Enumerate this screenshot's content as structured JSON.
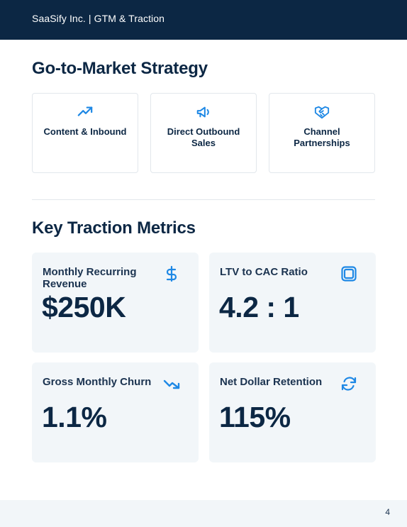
{
  "header": {
    "title": "SaaSify Inc. | GTM & Traction"
  },
  "gtm": {
    "title": "Go-to-Market Strategy",
    "cards": [
      {
        "label": "Content & Inbound",
        "icon": "trending-up-icon"
      },
      {
        "label": "Direct Outbound Sales",
        "icon": "megaphone-icon"
      },
      {
        "label": "Channel Partnerships",
        "icon": "handshake-icon"
      }
    ]
  },
  "traction": {
    "title": "Key Traction Metrics",
    "metrics": [
      {
        "label": "Monthly Recurring Revenue",
        "value": "$250K",
        "icon": "dollar-icon"
      },
      {
        "label": "LTV to CAC Ratio",
        "value": "4.2 : 1",
        "icon": "layers-icon"
      },
      {
        "label": "Gross Monthly Churn",
        "value": "1.1%",
        "icon": "trending-down-icon"
      },
      {
        "label": "Net Dollar Retention",
        "value": "115%",
        "icon": "refresh-icon"
      }
    ]
  },
  "footer": {
    "page_number": "4"
  },
  "colors": {
    "navy": "#0c2744",
    "accent": "#1e88e5",
    "card_bg": "#f2f6f9",
    "border": "#e2e7ec"
  }
}
